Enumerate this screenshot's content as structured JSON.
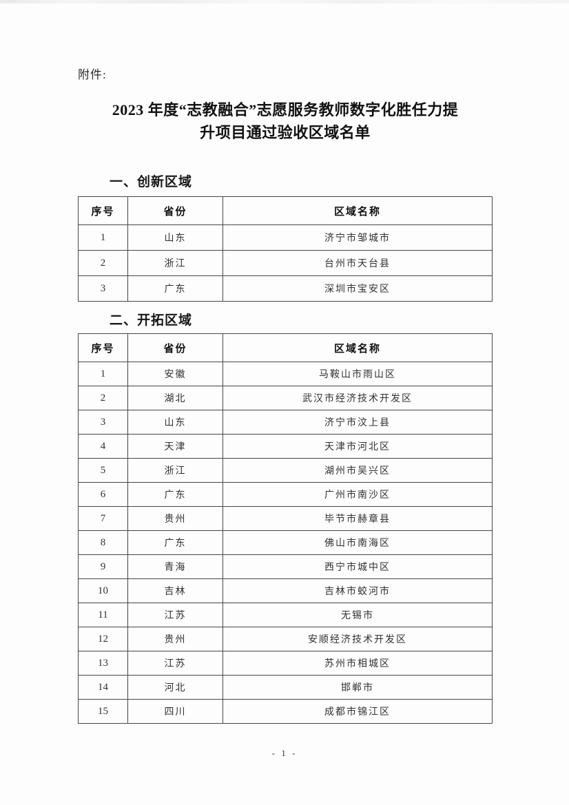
{
  "page": {
    "attachment_label": "附件:",
    "title_line1": "2023 年度“志教融合”志愿服务教师数字化胜任力提",
    "title_line2": "升项目通过验收区域名单",
    "footer": "- 1 -"
  },
  "colors": {
    "paper": "#fdfdfd",
    "ink": "#1c1c1c",
    "table_border": "#454545"
  },
  "sections": [
    {
      "heading": "一、创新区域",
      "columns": [
        "序号",
        "省份",
        "区域名称"
      ],
      "rows": [
        [
          "1",
          "山东",
          "济宁市邹城市"
        ],
        [
          "2",
          "浙江",
          "台州市天台县"
        ],
        [
          "3",
          "广东",
          "深圳市宝安区"
        ]
      ]
    },
    {
      "heading": "二、开拓区域",
      "columns": [
        "序号",
        "省份",
        "区域名称"
      ],
      "rows": [
        [
          "1",
          "安徽",
          "马鞍山市雨山区"
        ],
        [
          "2",
          "湖北",
          "武汉市经济技术开发区"
        ],
        [
          "3",
          "山东",
          "济宁市汶上县"
        ],
        [
          "4",
          "天津",
          "天津市河北区"
        ],
        [
          "5",
          "浙江",
          "湖州市吴兴区"
        ],
        [
          "6",
          "广东",
          "广州市南沙区"
        ],
        [
          "7",
          "贵州",
          "毕节市赫章县"
        ],
        [
          "8",
          "广东",
          "佛山市南海区"
        ],
        [
          "9",
          "青海",
          "西宁市城中区"
        ],
        [
          "10",
          "吉林",
          "吉林市蛟河市"
        ],
        [
          "11",
          "江苏",
          "无锡市"
        ],
        [
          "12",
          "贵州",
          "安顺经济技术开发区"
        ],
        [
          "13",
          "江苏",
          "苏州市相城区"
        ],
        [
          "14",
          "河北",
          "邯郸市"
        ],
        [
          "15",
          "四川",
          "成都市锦江区"
        ]
      ]
    }
  ]
}
